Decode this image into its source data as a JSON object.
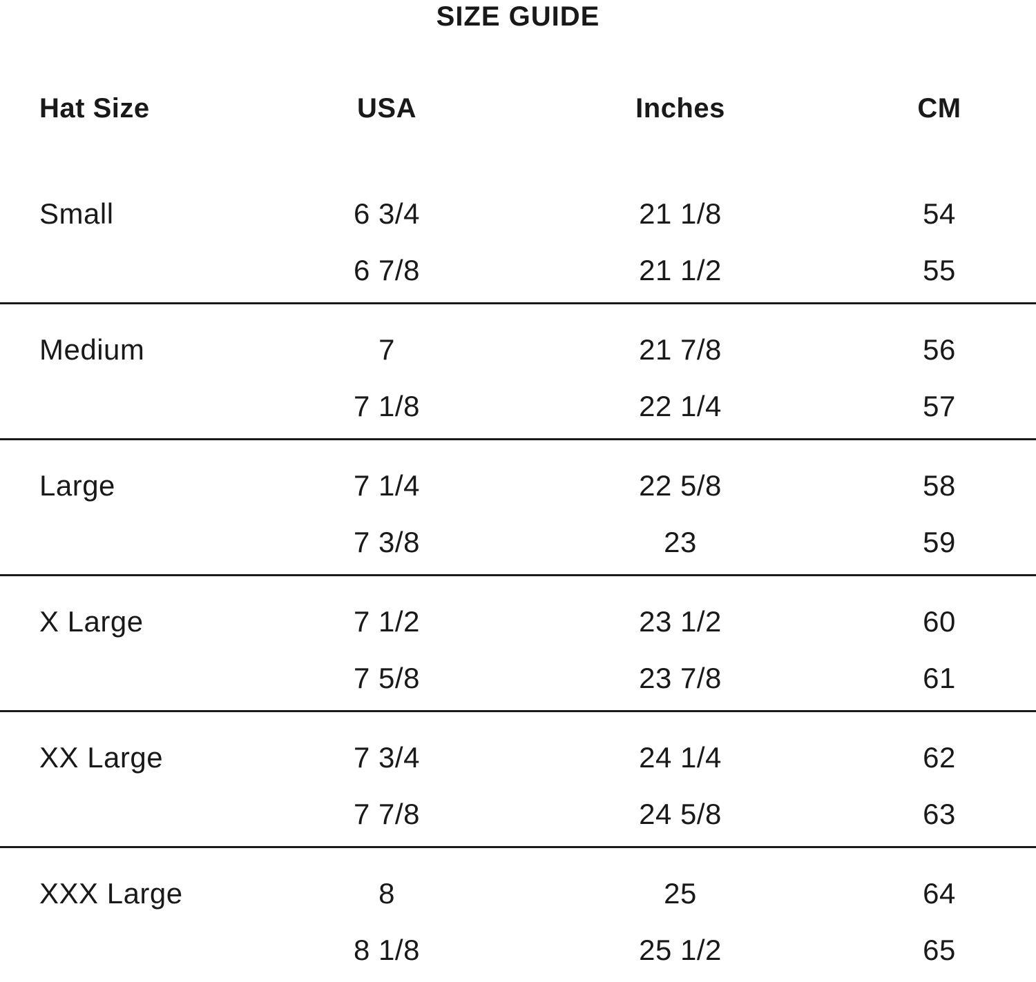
{
  "title": "SIZE GUIDE",
  "chart_data": {
    "type": "table",
    "title": "SIZE GUIDE",
    "columns": [
      "Hat Size",
      "USA",
      "Inches",
      "CM"
    ],
    "groups": [
      {
        "size": "Small",
        "rows": [
          [
            "6 3/4",
            "21 1/8",
            "54"
          ],
          [
            "6 7/8",
            "21 1/2",
            "55"
          ]
        ]
      },
      {
        "size": "Medium",
        "rows": [
          [
            "7",
            "21 7/8",
            "56"
          ],
          [
            "7 1/8",
            "22 1/4",
            "57"
          ]
        ]
      },
      {
        "size": "Large",
        "rows": [
          [
            "7 1/4",
            "22 5/8",
            "58"
          ],
          [
            "7 3/8",
            "23",
            "59"
          ]
        ]
      },
      {
        "size": "X Large",
        "rows": [
          [
            "7 1/2",
            "23 1/2",
            "60"
          ],
          [
            "7 5/8",
            "23 7/8",
            "61"
          ]
        ]
      },
      {
        "size": "XX Large",
        "rows": [
          [
            "7 3/4",
            "24 1/4",
            "62"
          ],
          [
            "7 7/8",
            "24 5/8",
            "63"
          ]
        ]
      },
      {
        "size": "XXX Large",
        "rows": [
          [
            "8",
            "25",
            "64"
          ],
          [
            "8 1/8",
            "25 1/2",
            "65"
          ]
        ]
      }
    ],
    "layout": {
      "column_alignment": [
        "left",
        "center",
        "center",
        "center"
      ],
      "group_divider": "horizontal-rule"
    }
  },
  "colors": {
    "text": "#191919",
    "divider": "#191919",
    "background": "#ffffff"
  }
}
